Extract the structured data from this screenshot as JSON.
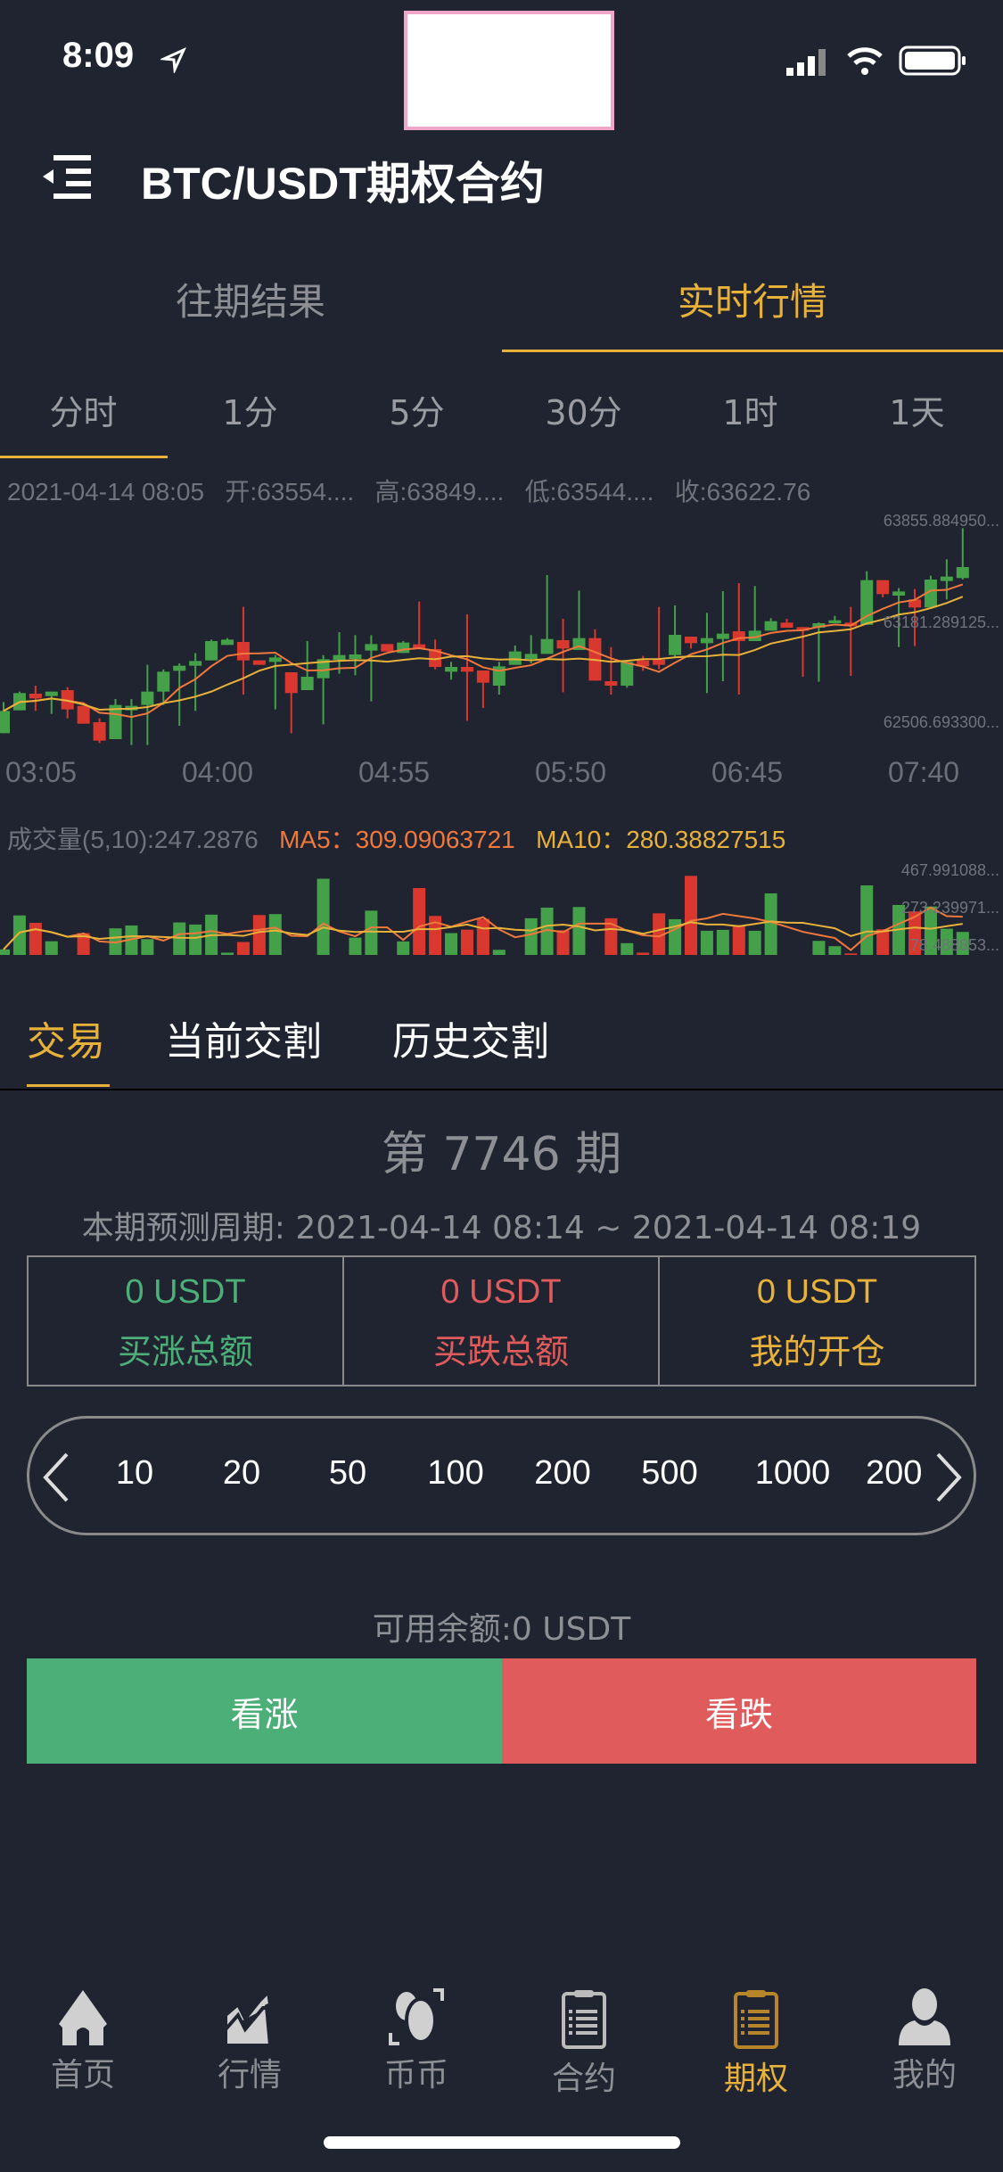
{
  "status_bar": {
    "time": "8:09",
    "icons": [
      "location-arrow-icon",
      "signal-icon",
      "wifi-icon",
      "battery-icon"
    ]
  },
  "header": {
    "title": "BTC/USDT期权合约",
    "menu_icon": "menu-collapse-icon"
  },
  "main_tabs": [
    {
      "label": "往期结果",
      "active": false
    },
    {
      "label": "实时行情",
      "active": true
    }
  ],
  "time_tabs": [
    {
      "label": "分时",
      "active": true
    },
    {
      "label": "1分"
    },
    {
      "label": "5分"
    },
    {
      "label": "30分"
    },
    {
      "label": "1时"
    },
    {
      "label": "1天"
    }
  ],
  "info_line": {
    "date": "2021-04-14 08:05",
    "open": "开:63554....",
    "high": "高:63849....",
    "low": "低:63544....",
    "close": "收:63622.76"
  },
  "price_axis_labels": [
    "63855.884950...",
    "63181.289125...",
    "62506.693300..."
  ],
  "time_axis_labels": [
    "03:05",
    "04:00",
    "04:55",
    "05:50",
    "06:45",
    "07:40"
  ],
  "volume_header": {
    "label": "成交量(5,10):247.2876",
    "ma5": "MA5：309.09063721",
    "ma10": "MA10：280.38827515"
  },
  "volume_axis_labels": [
    "467.991088...",
    "273.239971...",
    "78.488853..."
  ],
  "colors": {
    "bg": "#1f2430",
    "up": "#45a04a",
    "down": "#d9382f",
    "ma5": "#f0783c",
    "ma10": "#e8b13a",
    "accent": "#e8b13a",
    "buy": "#4daf78",
    "sell": "#e05c5c"
  },
  "candles": [
    [
      62432,
      62642,
      62432,
      62582
    ],
    [
      62586,
      62712,
      62586,
      62702
    ],
    [
      62698,
      62752,
      62582,
      62666
    ],
    [
      62682,
      62712,
      62562,
      62712
    ],
    [
      62722,
      62742,
      62532,
      62592
    ],
    [
      62616,
      62616,
      62496,
      62496
    ],
    [
      62506,
      62532,
      62366,
      62382
    ],
    [
      62392,
      62662,
      62392,
      62622
    ],
    [
      62586,
      62662,
      62352,
      62616
    ],
    [
      62622,
      62892,
      62352,
      62712
    ],
    [
      62712,
      62862,
      62622,
      62846
    ],
    [
      62852,
      62902,
      62482,
      62886
    ],
    [
      62886,
      62972,
      62582,
      62918
    ],
    [
      62922,
      63062,
      62922,
      63052
    ],
    [
      63026,
      63072,
      63026,
      63062
    ],
    [
      63046,
      63282,
      62692,
      62922
    ],
    [
      62922,
      62922,
      62892,
      62892
    ],
    [
      62912,
      62958,
      62592,
      62942
    ],
    [
      62842,
      62842,
      62432,
      62702
    ],
    [
      62722,
      63052,
      62722,
      62812
    ],
    [
      62802,
      62958,
      62492,
      62930
    ],
    [
      62926,
      63112,
      62832,
      62958
    ],
    [
      62932,
      63092,
      62822,
      62962
    ],
    [
      62988,
      63092,
      62646,
      63032
    ],
    [
      63032,
      63032,
      62982,
      62982
    ],
    [
      62972,
      63052,
      62972,
      63042
    ],
    [
      63030,
      63318,
      63002,
      63002
    ],
    [
      62998,
      63062,
      62862,
      62878
    ],
    [
      62846,
      62912,
      62792,
      62878
    ],
    [
      62878,
      63232,
      62516,
      62846
    ],
    [
      62854,
      62854,
      62602,
      62772
    ],
    [
      62752,
      62912,
      62692,
      62882
    ],
    [
      62892,
      63022,
      62892,
      62982
    ],
    [
      62932,
      63092,
      62902,
      62966
    ],
    [
      62966,
      63496,
      62966,
      63066
    ],
    [
      63058,
      63202,
      62708,
      63002
    ],
    [
      62992,
      63392,
      62992,
      63072
    ],
    [
      63072,
      63132,
      62786,
      62786
    ],
    [
      62782,
      63012,
      62692,
      62752
    ],
    [
      62752,
      62926,
      62738,
      62912
    ],
    [
      62922,
      62952,
      62852,
      62882
    ],
    [
      62926,
      63282,
      62862,
      62892
    ],
    [
      62958,
      63292,
      62942,
      63094
    ],
    [
      63082,
      63082,
      63002,
      63038
    ],
    [
      63038,
      63242,
      62702,
      63072
    ],
    [
      63066,
      63388,
      62782,
      63102
    ],
    [
      63118,
      63442,
      62692,
      63052
    ],
    [
      63052,
      63422,
      63052,
      63122
    ],
    [
      63122,
      63206,
      63122,
      63186
    ],
    [
      63176,
      63202,
      63142,
      63142
    ],
    [
      63146,
      63146,
      62812,
      63122
    ],
    [
      63142,
      63178,
      62778,
      63172
    ],
    [
      63172,
      63222,
      63172,
      63192
    ],
    [
      63176,
      63282,
      62818,
      63152
    ],
    [
      63162,
      63522,
      63162,
      63462
    ],
    [
      63462,
      63462,
      63346,
      63368
    ],
    [
      63358,
      63408,
      63012,
      63386
    ],
    [
      63332,
      63402,
      63018,
      63278
    ],
    [
      63278,
      63492,
      63278,
      63466
    ],
    [
      63456,
      63602,
      63332,
      63486
    ],
    [
      63476,
      63812,
      63466,
      63550
    ]
  ],
  "volumes": [
    65,
    244,
    205,
    108,
    36,
    151,
    36,
    176,
    191,
    119,
    36,
    207,
    196,
    248,
    48,
    104,
    246,
    251,
    36,
    36,
    437,
    36,
    127,
    269,
    36,
    107,
    388,
    241,
    151,
    169,
    226,
    63,
    36,
    229,
    285,
    166,
    288,
    36,
    229,
    98,
    48,
    255,
    224,
    452,
    163,
    168,
    193,
    163,
    360,
    36,
    36,
    110,
    82,
    44,
    402,
    171,
    299,
    265,
    291,
    174,
    157
  ],
  "trade_tabs": [
    {
      "label": "交易",
      "active": true
    },
    {
      "label": "当前交割"
    },
    {
      "label": "历史交割"
    }
  ],
  "period": {
    "title": "第 7746 期",
    "range": "本期预测周期: 2021-04-14 08:14 ~ 2021-04-14 08:19"
  },
  "summary": [
    {
      "value": "0 USDT",
      "label": "买涨总额"
    },
    {
      "value": "0 USDT",
      "label": "买跌总额"
    },
    {
      "value": "0 USDT",
      "label": "我的开仓"
    }
  ],
  "amounts": [
    "10",
    "20",
    "50",
    "100",
    "200",
    "500",
    "1000",
    "200"
  ],
  "balance": "可用余额:0 USDT",
  "buttons": {
    "up": "看涨",
    "down": "看跌"
  },
  "nav": [
    {
      "label": "首页",
      "icon": "home-icon"
    },
    {
      "label": "行情",
      "icon": "chart-trend-icon"
    },
    {
      "label": "币币",
      "icon": "coin-exchange-icon"
    },
    {
      "label": "合约",
      "icon": "clipboard-icon"
    },
    {
      "label": "期权",
      "icon": "clipboard-icon",
      "active": true
    },
    {
      "label": "我的",
      "icon": "user-icon"
    }
  ]
}
